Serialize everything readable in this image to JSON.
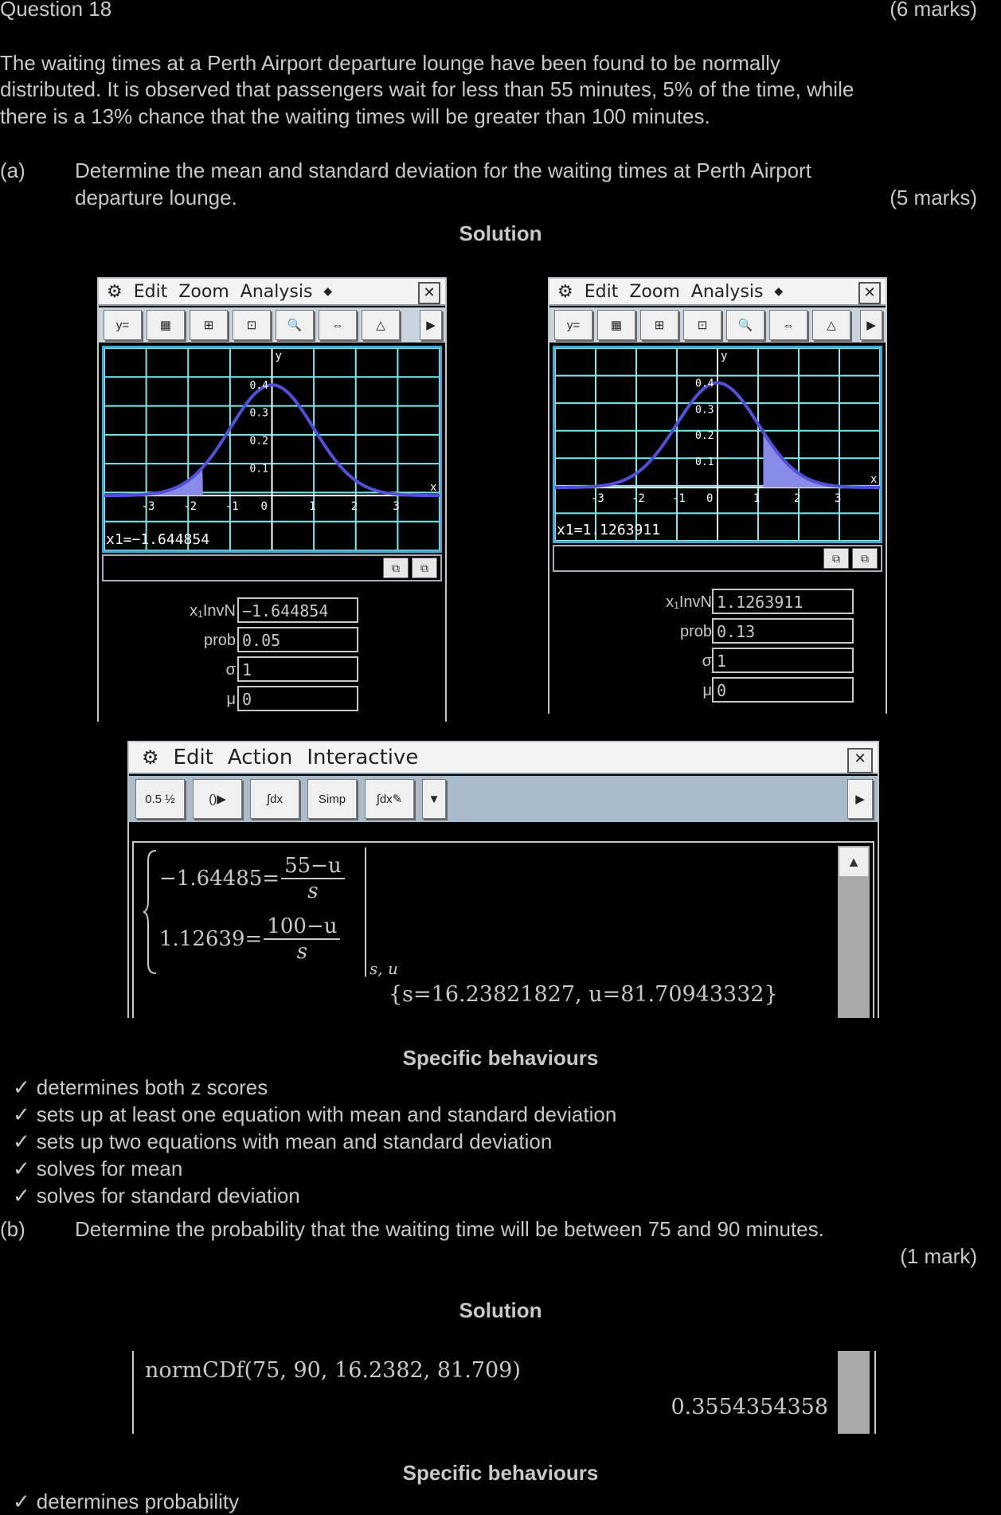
{
  "header": {
    "question": "Question 18",
    "marks": "(6 marks)"
  },
  "intro": {
    "line1": "The waiting times at a Perth Airport departure lounge have been found to be normally",
    "line2": "distributed. It is observed that passengers wait for less than 55 minutes, 5% of the time, while",
    "line3": "there is a 13% chance that the waiting times will be greater than 100 minutes."
  },
  "part_a": {
    "label": "(a)",
    "line1": "Determine the mean and standard deviation for the waiting times at Perth Airport",
    "line2": "departure lounge.",
    "marks": "(5 marks)",
    "solution_heading": "Solution",
    "graph_menu": {
      "edit": "Edit",
      "zoom": "Zoom",
      "analysis": "Analysis",
      "arrow": "◆",
      "close": "✕"
    },
    "graph_axis": {
      "y": "y",
      "x": "x",
      "origin": "0",
      "xticks": [
        "-3",
        "-2",
        "-1",
        "1",
        "2",
        "3"
      ],
      "yticks": [
        "0.1",
        "0.2",
        "0.3",
        "0.4"
      ]
    },
    "graph_left": {
      "readout": "x1=−1.644854",
      "fields": [
        {
          "label": "x₁InvN",
          "value": "−1.644854"
        },
        {
          "label": "prob",
          "value": "0.05"
        },
        {
          "label": "σ",
          "value": "1"
        },
        {
          "label": "μ",
          "value": "0"
        }
      ]
    },
    "graph_right": {
      "readout": "x1=1.1263911",
      "fields": [
        {
          "label": "x₁InvN",
          "value": "1.1263911"
        },
        {
          "label": "prob",
          "value": "0.13"
        },
        {
          "label": "σ",
          "value": "1"
        },
        {
          "label": "μ",
          "value": "0"
        }
      ]
    },
    "main_menu": {
      "edit": "Edit",
      "action": "Action",
      "interactive": "Interactive"
    },
    "main_toolbar": [
      "0.5 ½",
      "(⁠⁠⁠)▶",
      "∫dx",
      "Simp",
      "∫dx✎",
      "▼"
    ],
    "equations": {
      "eq1_left": "−1.64485=",
      "eq1_num": "55−u",
      "eq1_den": "s",
      "eq2_left": "1.12639=",
      "eq2_num": "100−u",
      "eq2_den": "s",
      "vars": "s, u",
      "result": "{s=16.23821827, u=81.70943332}"
    },
    "specific_heading": "Specific behaviours",
    "behaviours": [
      "determines both z scores",
      "sets up at least one equation with mean and standard deviation",
      "sets up two equations with mean and standard deviation",
      "solves for mean",
      "solves for standard deviation"
    ]
  },
  "part_b": {
    "label": "(b)",
    "line1": "Determine the probability that the waiting time will be between 75 and 90 minutes.",
    "marks": "(1 mark)",
    "solution_heading": "Solution",
    "command": "normCDf(75, 90, 16.2382, 81.709)",
    "result": "0.3554354358",
    "specific_heading": "Specific behaviours",
    "behaviours": [
      "determines probability"
    ]
  },
  "icons": {
    "check": "✓",
    "gear": "⚙"
  }
}
